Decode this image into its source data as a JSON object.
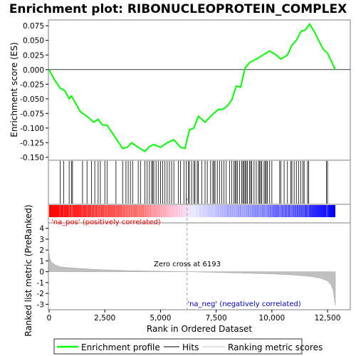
{
  "chart_data": [
    {
      "type": "line",
      "title": "Enrichment plot: RIBONUCLEOPROTEIN_COMPLEX",
      "ylabel": "Enrichment score (ES)",
      "ylim": [
        -0.155,
        0.085
      ],
      "yticks": [
        0.075,
        0.05,
        0.025,
        0.0,
        -0.025,
        -0.05,
        -0.075,
        -0.1,
        -0.125,
        -0.15
      ],
      "ytick_labels": [
        "0.075",
        "0.050",
        "0.025",
        "0.000",
        "-0.025",
        "-0.050",
        "-0.075",
        "-0.100",
        "-0.125",
        "-0.150"
      ],
      "xlim": [
        0,
        13000
      ],
      "series": [
        {
          "name": "Enrichment profile",
          "color": "#00ff00",
          "x": [
            0,
            200,
            500,
            700,
            900,
            1000,
            1200,
            1400,
            1700,
            2000,
            2200,
            2400,
            2600,
            3000,
            3300,
            3500,
            3700,
            4000,
            4300,
            4500,
            4700,
            5000,
            5300,
            5600,
            5900,
            6100,
            6300,
            6500,
            6700,
            7000,
            7300,
            7600,
            7800,
            8000,
            8200,
            8400,
            8600,
            8800,
            9000,
            9300,
            9600,
            9900,
            10200,
            10400,
            10700,
            10900,
            11100,
            11300,
            11500,
            11700,
            11900,
            12100,
            12300,
            12500,
            12700,
            12850
          ],
          "y": [
            0.0,
            -0.015,
            -0.032,
            -0.036,
            -0.05,
            -0.045,
            -0.058,
            -0.072,
            -0.08,
            -0.09,
            -0.085,
            -0.095,
            -0.095,
            -0.118,
            -0.135,
            -0.133,
            -0.125,
            -0.133,
            -0.14,
            -0.132,
            -0.128,
            -0.133,
            -0.125,
            -0.12,
            -0.133,
            -0.135,
            -0.103,
            -0.1,
            -0.08,
            -0.09,
            -0.078,
            -0.068,
            -0.068,
            -0.062,
            -0.052,
            -0.028,
            -0.03,
            0.003,
            0.012,
            0.018,
            0.025,
            0.032,
            0.025,
            0.018,
            0.025,
            0.042,
            0.05,
            0.065,
            0.068,
            0.078,
            0.065,
            0.05,
            0.035,
            0.028,
            0.012,
            0.0
          ]
        }
      ]
    },
    {
      "type": "scatter",
      "series": [
        {
          "name": "Hits",
          "color": "#000000",
          "x": [
            500,
            650,
            900,
            1000,
            1050,
            1500,
            1700,
            1900,
            2050,
            2200,
            2300,
            2500,
            2600,
            3000,
            3300,
            3450,
            3550,
            3650,
            3750,
            4000,
            4100,
            4300,
            4400,
            4500,
            4600,
            4650,
            4700,
            4800,
            4900,
            5000,
            5100,
            5200,
            5300,
            5400,
            5500,
            5600,
            5800,
            5900,
            6050,
            6150,
            6250,
            6300,
            6400,
            6500,
            6550,
            6650,
            6700,
            6850,
            7000,
            7100,
            7250,
            7350,
            7400,
            7450,
            7550,
            7650,
            7750,
            7850,
            7950,
            8100,
            8200,
            8300,
            8350,
            8400,
            8450,
            8550,
            8650,
            8700,
            8750,
            8800,
            8850,
            8900,
            9000,
            9050,
            9100,
            9200,
            9300,
            9400,
            9450,
            9500,
            9550,
            9650,
            9700,
            9750,
            9800,
            9900,
            10000,
            10350,
            10400,
            10550,
            10700,
            10850,
            10900,
            11000,
            11100,
            11200,
            11300,
            11400,
            11450,
            11600,
            11650,
            12450,
            12500
          ]
        }
      ]
    },
    {
      "type": "area",
      "ylabel": "Ranked list metric (PreRanked)",
      "xlabel": "Rank in Ordered Dataset",
      "ylim": [
        -3.5,
        4.5
      ],
      "yticks": [
        4,
        3,
        2,
        1,
        0,
        -1,
        -2,
        -3
      ],
      "ytick_labels": [
        "4",
        "3",
        "2",
        "1",
        "0",
        "-1",
        "-2",
        "-3"
      ],
      "xlim": [
        0,
        13000
      ],
      "xticks": [
        0,
        2500,
        5000,
        7500,
        10000,
        12500
      ],
      "xtick_labels": [
        "0",
        "2,500",
        "5,000",
        "7,500",
        "10,000",
        "12,500"
      ],
      "series": [
        {
          "name": "Ranking metric scores",
          "color": "#c0c0c0",
          "x": [
            0,
            30,
            100,
            250,
            500,
            1000,
            2000,
            3000,
            4000,
            5000,
            6193,
            7000,
            8000,
            9000,
            10000,
            11000,
            11800,
            12200,
            12500,
            12650,
            12750,
            12800,
            12850
          ],
          "y": [
            1.7,
            1.2,
            0.9,
            0.65,
            0.45,
            0.35,
            0.22,
            0.13,
            0.08,
            0.04,
            0.0,
            -0.04,
            -0.09,
            -0.14,
            -0.2,
            -0.3,
            -0.45,
            -0.6,
            -0.85,
            -1.2,
            -1.7,
            -2.4,
            -3.1
          ]
        }
      ],
      "annotations": [
        "'na_pos' (positively correlated)",
        "Zero cross at 6193",
        "'na_neg' (negatively correlated)"
      ],
      "zero_cross": 6193
    }
  ],
  "legend": {
    "items": [
      {
        "label": "Enrichment profile",
        "color": "#00ff00"
      },
      {
        "label": "Hits",
        "color": "#000000"
      },
      {
        "label": "Ranking metric scores",
        "color": "#c0c0c0"
      }
    ],
    "placement": "bottom"
  },
  "colors": {
    "positive": "#ff0000",
    "negative": "#0000ff",
    "positive_label": "#ff0000",
    "negative_label": "#0000c8"
  }
}
